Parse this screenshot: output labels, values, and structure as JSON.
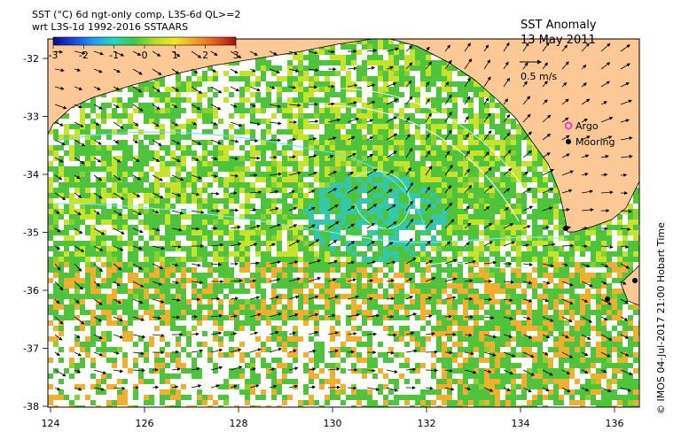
{
  "header": {
    "line1": "SST (°C) 6d ngt-only comp, L3S-6d QL>=2",
    "line2": "wrt L3S-1d 1992-2016 SSTAARS"
  },
  "colorbar": {
    "ticks": [
      "-3",
      "-2",
      "-1",
      "0",
      "1",
      "2",
      "3"
    ],
    "stops": [
      "#0a0a8c",
      "#1e46dc",
      "#1fa0f0",
      "#22d8c0",
      "#40c840",
      "#b4dc28",
      "#f0e628",
      "#f0a028",
      "#e65a1e",
      "#9e1414"
    ]
  },
  "title": {
    "name": "SST Anomaly",
    "date": "13 May 2011"
  },
  "speed_legend": {
    "label": "0.5 m/s"
  },
  "symbol_legend": [
    {
      "label": "Argo",
      "color": "#e020e0"
    },
    {
      "label": "Mooring",
      "color": "#000000"
    }
  ],
  "axes": {
    "x_ticks": [
      "124",
      "126",
      "128",
      "130",
      "132",
      "134",
      "136"
    ],
    "y_ticks": [
      "-32",
      "-33",
      "-34",
      "-35",
      "-36",
      "-37",
      "-38"
    ]
  },
  "credit": "© IMOS 04-Jul-2017 21:00 Hobart Time",
  "colors": {
    "land": "#fbc896",
    "water_green": "#4ec43c",
    "water_yellow": "#c6e22a",
    "water_cyan": "#34c8a8",
    "water_orange": "#f0b02e",
    "missing": "#ffffff"
  }
}
